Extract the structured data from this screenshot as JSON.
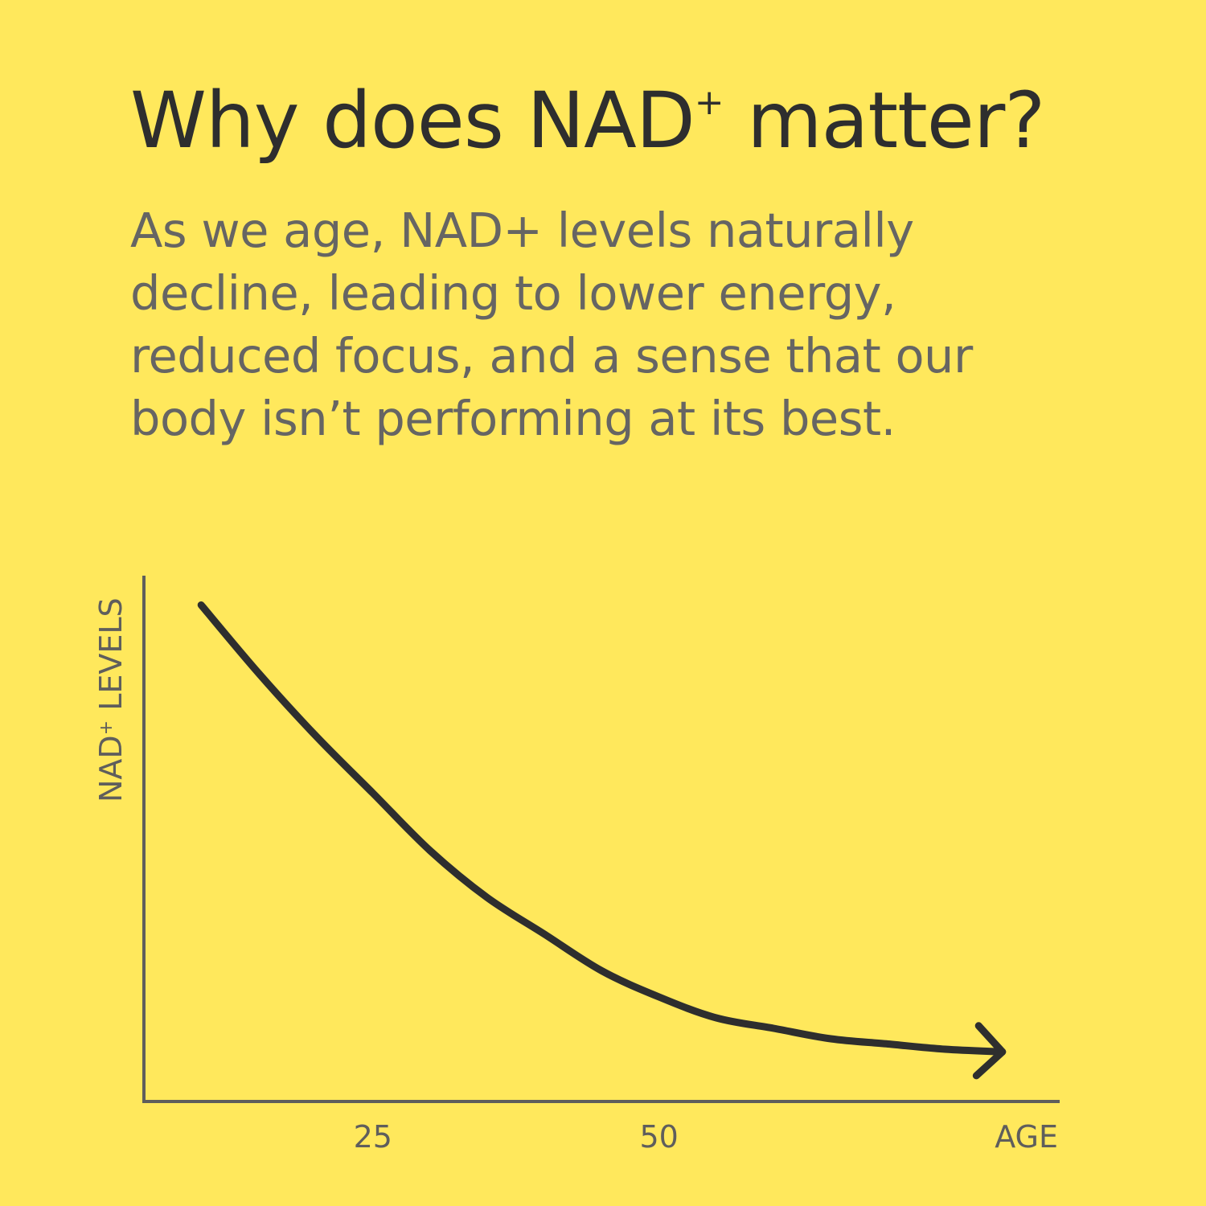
{
  "colors": {
    "background": "#FFE85C",
    "heading": "#2E2E2E",
    "body_text": "#666563",
    "axis": "#5F5E5C",
    "curve": "#2E2E2E"
  },
  "headline": {
    "text": "Why does NAD",
    "superscript": "+",
    "suffix": " matter?"
  },
  "body": {
    "lines": [
      "As we age, NAD+ levels naturally",
      "decline, leading to lower energy,",
      "reduced focus, and a sense that our",
      "body isn’t performing at its best."
    ]
  },
  "chart_data": {
    "type": "line",
    "title": "",
    "xlabel": "AGE",
    "ylabel_main": "NAD",
    "ylabel_sup": "+",
    "ylabel_rest": " LEVELS",
    "x_ticks": [
      "25",
      "50"
    ],
    "tick_values": [
      25,
      50
    ],
    "xlim": [
      5,
      85
    ],
    "ylim": [
      0,
      100
    ],
    "y_ticks": [],
    "grid": false,
    "legend": "none",
    "arrow_end": true,
    "series": [
      {
        "x": [
          10,
          15,
          20,
          25,
          30,
          35,
          40,
          45,
          50,
          55,
          60,
          65,
          70,
          75,
          80
        ],
        "y": [
          95,
          82,
          70,
          59,
          48,
          39,
          32,
          25,
          20,
          16,
          14,
          12,
          11,
          10,
          9.5
        ]
      }
    ]
  }
}
